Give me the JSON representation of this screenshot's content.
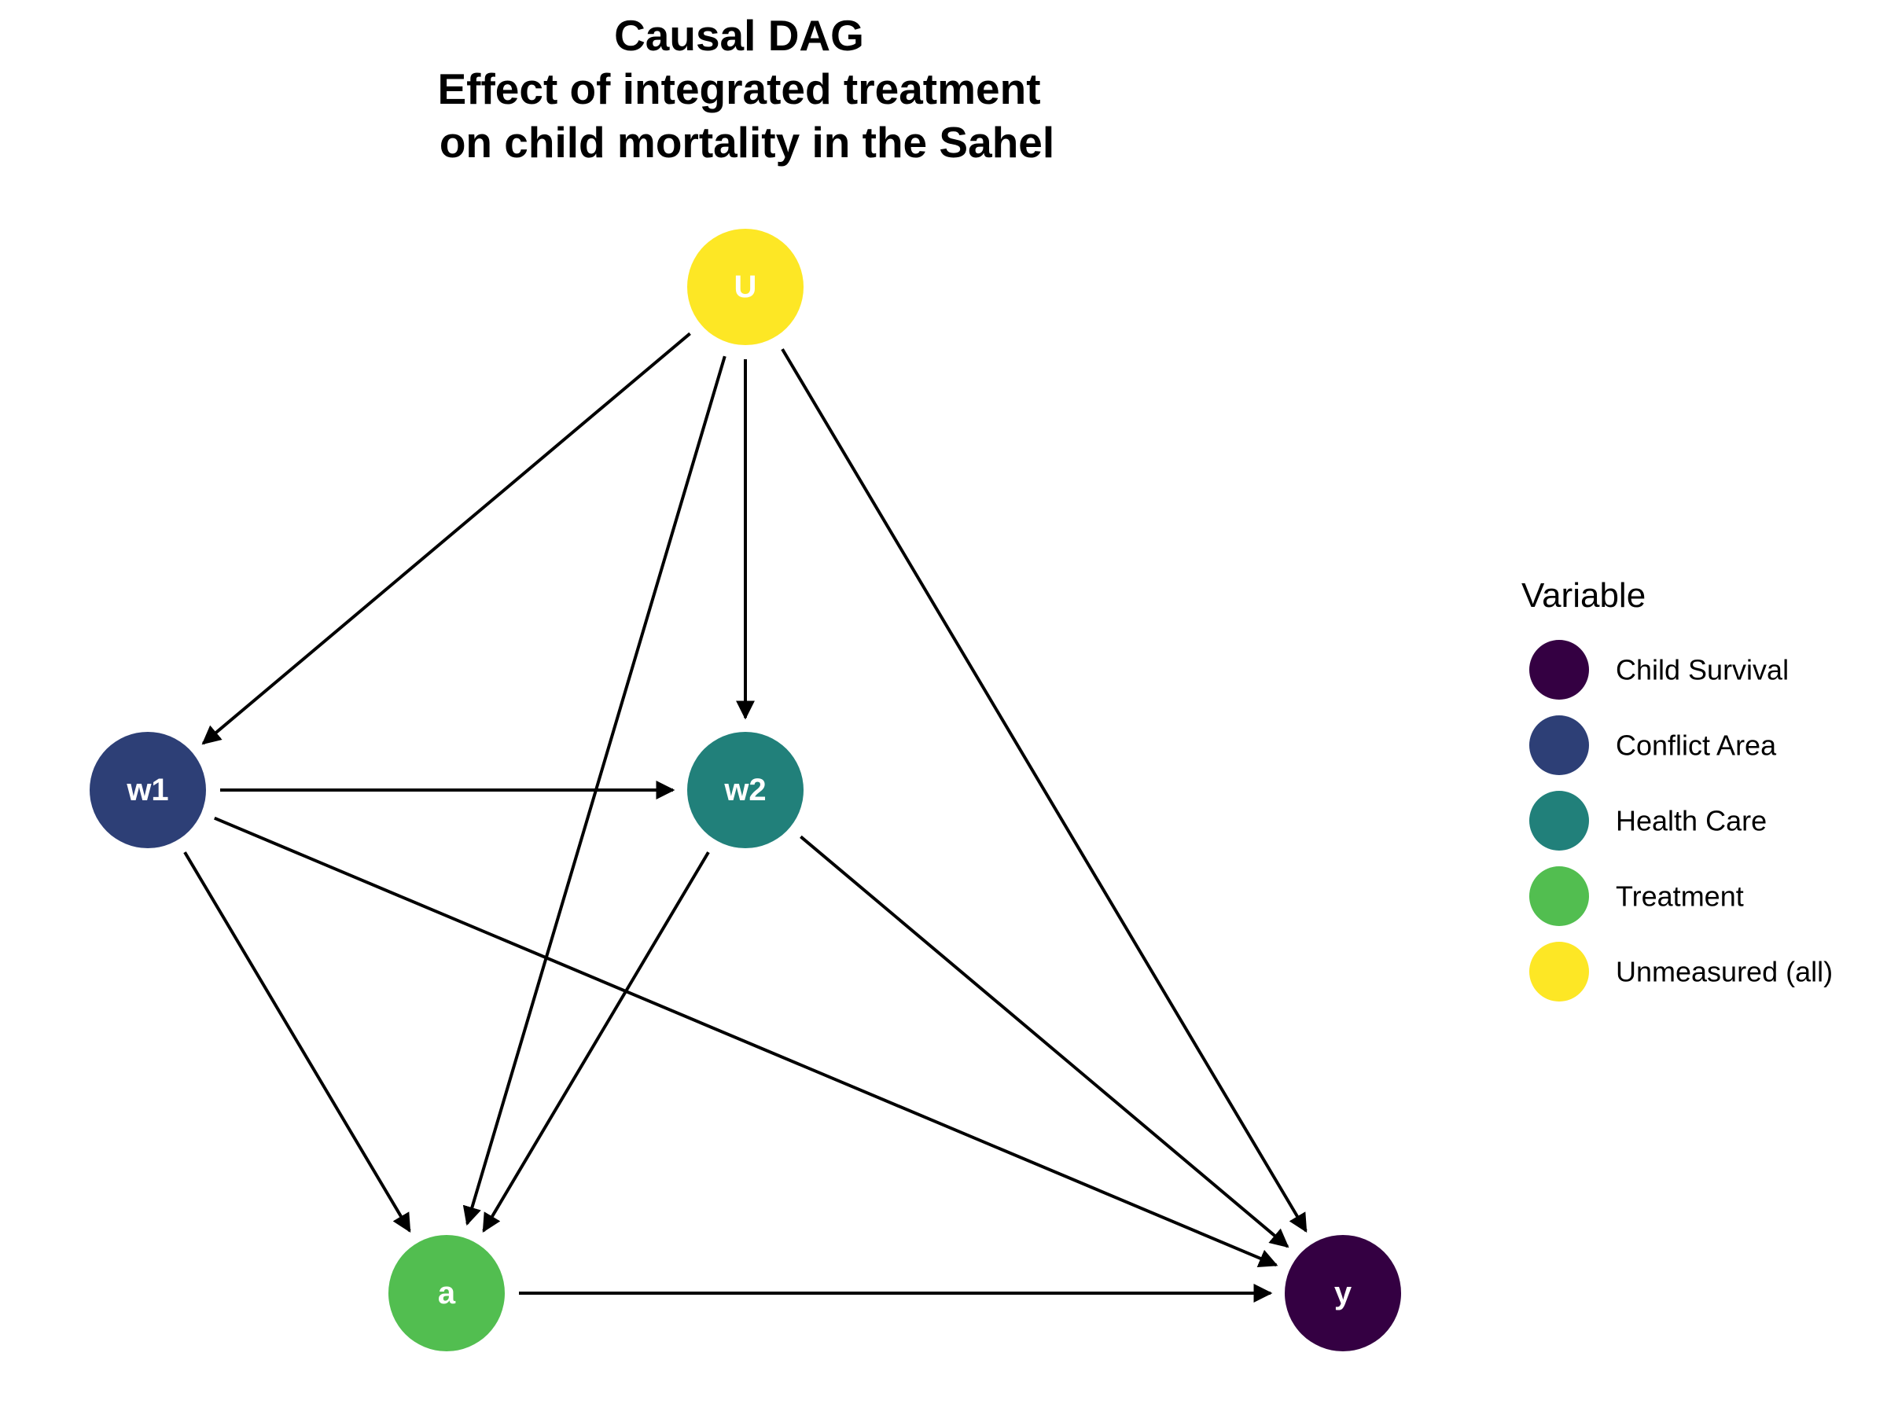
{
  "title": {
    "lines": [
      "Causal DAG",
      "Effect of integrated treatment",
      "on child mortality in the Sahel"
    ]
  },
  "nodes": [
    {
      "id": "U",
      "label": "U",
      "variable": "Unmeasured (all)",
      "color": "#FDE725"
    },
    {
      "id": "w1",
      "label": "w1",
      "variable": "Conflict Area",
      "color": "#2D3F76"
    },
    {
      "id": "w2",
      "label": "w2",
      "variable": "Health Care",
      "color": "#21807A"
    },
    {
      "id": "a",
      "label": "a",
      "variable": "Treatment",
      "color": "#52BE50"
    },
    {
      "id": "y",
      "label": "y",
      "variable": "Child Survival",
      "color": "#340042"
    }
  ],
  "edges": [
    {
      "from": "U",
      "to": "w1"
    },
    {
      "from": "U",
      "to": "w2"
    },
    {
      "from": "U",
      "to": "a"
    },
    {
      "from": "U",
      "to": "y"
    },
    {
      "from": "w1",
      "to": "w2"
    },
    {
      "from": "w1",
      "to": "a"
    },
    {
      "from": "w1",
      "to": "y"
    },
    {
      "from": "w2",
      "to": "a"
    },
    {
      "from": "w2",
      "to": "y"
    },
    {
      "from": "a",
      "to": "y"
    }
  ],
  "legend": {
    "title": "Variable",
    "items": [
      {
        "label": "Child Survival",
        "color": "#340042"
      },
      {
        "label": "Conflict Area",
        "color": "#2D3F76"
      },
      {
        "label": "Health Care",
        "color": "#21807A"
      },
      {
        "label": "Treatment",
        "color": "#52BE50"
      },
      {
        "label": "Unmeasured (all)",
        "color": "#FDE725"
      }
    ]
  }
}
